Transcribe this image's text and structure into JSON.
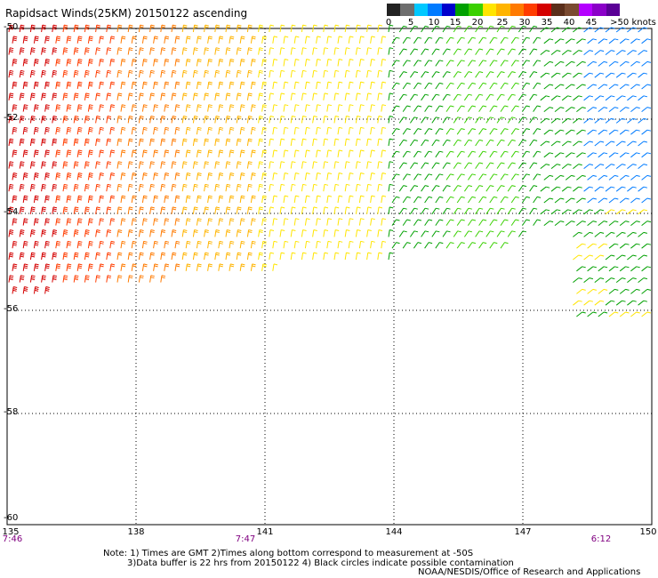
{
  "title": "Rapidsact Winds(25KM) 20150122 ascending",
  "scale": {
    "labels": [
      "0",
      "5",
      "10",
      "15",
      "20",
      "25",
      "30",
      "35",
      "40",
      "45",
      ">50 knots"
    ],
    "colors": [
      "#222222",
      "#6e6e6e",
      "#00c8ff",
      "#007bff",
      "#0000cd",
      "#00a000",
      "#39d000",
      "#ffe500",
      "#ffb400",
      "#ff7a00",
      "#ff3c00",
      "#d40000",
      "#5a2e1a",
      "#7a4a30",
      "#b400ff",
      "#8a00c8",
      "#5a0096"
    ]
  },
  "map": {
    "lat_labels": [
      "-50",
      "-52",
      "-54",
      "-56",
      "-58",
      "-60"
    ],
    "lon_labels": [
      "135",
      "138",
      "141",
      "144",
      "147",
      "150"
    ],
    "time_labels": [
      "7:46",
      "7:47",
      "6:12"
    ]
  },
  "notes": {
    "line1": "Note:  1) Times are GMT  2)Times along bottom correspond to measurement at -50S",
    "line2": "3)Data buffer is 22 hrs from 20150122  4) Black circles indicate possible contamination",
    "line3": "NOAA/NESDIS/Office of Research and Applications"
  }
}
